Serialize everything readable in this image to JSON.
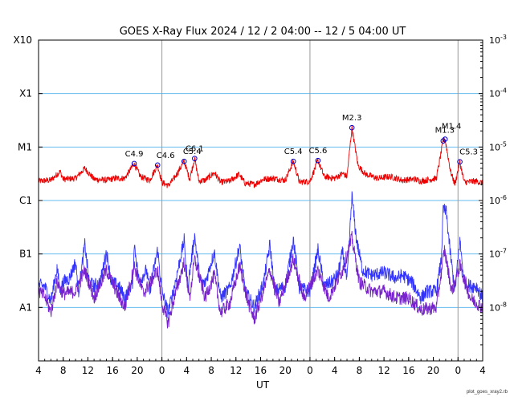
{
  "chart_data": {
    "type": "line",
    "title": "GOES X-Ray Flux   2024 / 12 /  2   04:00 -- 12 /  5   04:00   UT",
    "xlabel": "UT",
    "x_range_hours": [
      0,
      72
    ],
    "x_ticks": [
      {
        "h": 0,
        "label": "4"
      },
      {
        "h": 4,
        "label": "8"
      },
      {
        "h": 8,
        "label": "12"
      },
      {
        "h": 12,
        "label": "16"
      },
      {
        "h": 16,
        "label": "20"
      },
      {
        "h": 20,
        "label": "0"
      },
      {
        "h": 24,
        "label": "4"
      },
      {
        "h": 28,
        "label": "8"
      },
      {
        "h": 32,
        "label": "12"
      },
      {
        "h": 36,
        "label": "16"
      },
      {
        "h": 40,
        "label": "20"
      },
      {
        "h": 44,
        "label": "0"
      },
      {
        "h": 48,
        "label": "4"
      },
      {
        "h": 52,
        "label": "8"
      },
      {
        "h": 56,
        "label": "12"
      },
      {
        "h": 60,
        "label": "16"
      },
      {
        "h": 64,
        "label": "20"
      },
      {
        "h": 68,
        "label": "0"
      },
      {
        "h": 72,
        "label": "4"
      }
    ],
    "day_boundaries_hours": [
      20,
      44,
      68
    ],
    "y_scale": "log",
    "y_range": [
      1e-09,
      0.001
    ],
    "y_left_labels": [
      {
        "label": "A1",
        "value": 1e-08
      },
      {
        "label": "B1",
        "value": 1e-07
      },
      {
        "label": "C1",
        "value": 1e-06
      },
      {
        "label": "M1",
        "value": 1e-05
      },
      {
        "label": "X1",
        "value": 0.0001
      },
      {
        "label": "X10",
        "value": 0.001
      }
    ],
    "y_right_labels": [
      {
        "base": "10",
        "exp": "-3",
        "value": 0.001
      },
      {
        "base": "10",
        "exp": "-4",
        "value": 0.0001
      },
      {
        "base": "10",
        "exp": "-5",
        "value": 1e-05
      },
      {
        "base": "10",
        "exp": "-6",
        "value": 1e-06
      },
      {
        "base": "10",
        "exp": "-7",
        "value": 1e-07
      },
      {
        "base": "10",
        "exp": "-8",
        "value": 1e-08
      }
    ],
    "grid_levels": [
      1e-08,
      1e-07,
      1e-06,
      1e-05,
      0.0001
    ],
    "series": [
      {
        "color": "#ee0000",
        "values": [
          [
            0,
            2.3e-06
          ],
          [
            2,
            2.4e-06
          ],
          [
            3.5,
            3.5e-06
          ],
          [
            4,
            2.5e-06
          ],
          [
            6,
            2.6e-06
          ],
          [
            7.5,
            4e-06
          ],
          [
            9,
            2.5e-06
          ],
          [
            11,
            2.4e-06
          ],
          [
            12.5,
            2.6e-06
          ],
          [
            14,
            2.6e-06
          ],
          [
            15.5,
            4.9e-06
          ],
          [
            16.5,
            2.8e-06
          ],
          [
            18,
            2.4e-06
          ],
          [
            19.3,
            4.6e-06
          ],
          [
            20,
            2.2e-06
          ],
          [
            21,
            1.9e-06
          ],
          [
            22,
            2.6e-06
          ],
          [
            23.6,
            5.4e-06
          ],
          [
            24.5,
            2.5e-06
          ],
          [
            25.3,
            6.1e-06
          ],
          [
            26,
            2.3e-06
          ],
          [
            27,
            2.4e-06
          ],
          [
            28.5,
            3.3e-06
          ],
          [
            29.5,
            2.2e-06
          ],
          [
            31,
            2.3e-06
          ],
          [
            32.5,
            3.1e-06
          ],
          [
            33.5,
            2.1e-06
          ],
          [
            35,
            2e-06
          ],
          [
            36.5,
            2.5e-06
          ],
          [
            38,
            2.6e-06
          ],
          [
            40,
            2.4e-06
          ],
          [
            41.3,
            5.4e-06
          ],
          [
            42.3,
            2.2e-06
          ],
          [
            44,
            2.3e-06
          ],
          [
            45.3,
            5.6e-06
          ],
          [
            46.3,
            2.8e-06
          ],
          [
            48,
            2.6e-06
          ],
          [
            49.3,
            3.2e-06
          ],
          [
            50,
            2.8e-06
          ],
          [
            50.8,
            2.3e-05
          ],
          [
            51.8,
            4.5e-06
          ],
          [
            53,
            3.1e-06
          ],
          [
            55,
            2.6e-06
          ],
          [
            57,
            2.8e-06
          ],
          [
            59,
            2.4e-06
          ],
          [
            61,
            2.5e-06
          ],
          [
            62,
            2.3e-06
          ],
          [
            64.5,
            2.6e-06
          ],
          [
            65.6,
            1.3e-05
          ],
          [
            65.9,
            1.4e-05
          ],
          [
            66.8,
            3.5e-06
          ],
          [
            67.5,
            2e-06
          ],
          [
            68.3,
            5.3e-06
          ],
          [
            69,
            2.2e-06
          ],
          [
            71,
            2.3e-06
          ],
          [
            72,
            2.1e-06
          ]
        ]
      },
      {
        "color": "#3333ff",
        "values": [
          [
            0,
            2.6e-08
          ],
          [
            1,
            2.5e-08
          ],
          [
            2,
            1.3e-08
          ],
          [
            3,
            5.5e-08
          ],
          [
            3.5,
            2e-08
          ],
          [
            4,
            3e-08
          ],
          [
            5,
            3.5e-08
          ],
          [
            6,
            7e-08
          ],
          [
            6.5,
            2e-08
          ],
          [
            7.5,
            1.5e-07
          ],
          [
            8.2,
            3e-08
          ],
          [
            9,
            2.5e-08
          ],
          [
            10,
            3e-08
          ],
          [
            11,
            1.1e-07
          ],
          [
            11.8,
            3e-08
          ],
          [
            13,
            2.5e-08
          ],
          [
            14,
            1.5e-08
          ],
          [
            15.3,
            3e-08
          ],
          [
            15.5,
            1.6e-07
          ],
          [
            16.3,
            3e-08
          ],
          [
            17.5,
            5e-08
          ],
          [
            18,
            2e-08
          ],
          [
            19.3,
            1.2e-07
          ],
          [
            20,
            2e-08
          ],
          [
            21,
            8e-09
          ],
          [
            22,
            2.4e-08
          ],
          [
            23.6,
            1.8e-07
          ],
          [
            24.2,
            2.5e-08
          ],
          [
            25.3,
            2.2e-07
          ],
          [
            26.2,
            3e-08
          ],
          [
            27,
            2.8e-08
          ],
          [
            28.5,
            1.1e-07
          ],
          [
            29.5,
            1.5e-08
          ],
          [
            31,
            2.3e-08
          ],
          [
            32.6,
            1.4e-07
          ],
          [
            33.5,
            2e-08
          ],
          [
            35,
            1e-08
          ],
          [
            36.5,
            3e-08
          ],
          [
            37.5,
            1.5e-07
          ],
          [
            38.3,
            2e-08
          ],
          [
            40,
            2.5e-08
          ],
          [
            41.3,
            1.9e-07
          ],
          [
            42.3,
            2.3e-08
          ],
          [
            44,
            2e-08
          ],
          [
            45.3,
            1.2e-07
          ],
          [
            46.3,
            2.5e-08
          ],
          [
            47.5,
            3e-08
          ],
          [
            48.5,
            4e-08
          ],
          [
            49.3,
            1.1e-07
          ],
          [
            50,
            3e-08
          ],
          [
            50.8,
            1.2e-06
          ],
          [
            51.5,
            2e-07
          ],
          [
            52.5,
            5e-08
          ],
          [
            54,
            4e-08
          ],
          [
            56,
            4.5e-08
          ],
          [
            58,
            3.5e-08
          ],
          [
            59,
            4e-08
          ],
          [
            60.5,
            3e-08
          ],
          [
            62,
            1.5e-08
          ],
          [
            63,
            2e-08
          ],
          [
            64.5,
            2e-08
          ],
          [
            65.3,
            8e-08
          ],
          [
            65.6,
            7e-07
          ],
          [
            66.1,
            6e-07
          ],
          [
            66.8,
            9e-08
          ],
          [
            67.5,
            2e-08
          ],
          [
            68.3,
            1.8e-07
          ],
          [
            69,
            3e-08
          ],
          [
            70,
            2.5e-08
          ],
          [
            71,
            2.5e-08
          ],
          [
            72,
            1.5e-08
          ]
        ]
      },
      {
        "color": "#7722cc",
        "values": [
          [
            0,
            2e-08
          ],
          [
            1,
            1.6e-08
          ],
          [
            2,
            8e-09
          ],
          [
            3,
            3e-08
          ],
          [
            4,
            1.8e-08
          ],
          [
            6,
            2e-08
          ],
          [
            7.5,
            5e-08
          ],
          [
            9,
            1.5e-08
          ],
          [
            11,
            5e-08
          ],
          [
            13,
            1.6e-08
          ],
          [
            14,
            1e-08
          ],
          [
            15.5,
            6e-08
          ],
          [
            17,
            1.8e-08
          ],
          [
            19.3,
            5e-08
          ],
          [
            20,
            1.2e-08
          ],
          [
            21,
            5e-09
          ],
          [
            22,
            1.5e-08
          ],
          [
            23.6,
            7e-08
          ],
          [
            24.5,
            1.5e-08
          ],
          [
            25.3,
            8e-08
          ],
          [
            27,
            1.5e-08
          ],
          [
            28.5,
            4e-08
          ],
          [
            29.5,
            8e-09
          ],
          [
            31,
            1.2e-08
          ],
          [
            32.6,
            6e-08
          ],
          [
            34,
            1.2e-08
          ],
          [
            35,
            6e-09
          ],
          [
            37.5,
            5e-08
          ],
          [
            39,
            1.2e-08
          ],
          [
            41.3,
            8e-08
          ],
          [
            43,
            1.5e-08
          ],
          [
            45.3,
            5e-08
          ],
          [
            47,
            1.5e-08
          ],
          [
            49.3,
            5e-08
          ],
          [
            50.8,
            2e-07
          ],
          [
            52,
            3e-08
          ],
          [
            54,
            2e-08
          ],
          [
            56,
            2e-08
          ],
          [
            58,
            1.5e-08
          ],
          [
            60,
            1.5e-08
          ],
          [
            62,
            9e-09
          ],
          [
            64.5,
            1e-08
          ],
          [
            65.8,
            1.2e-07
          ],
          [
            67,
            2e-08
          ],
          [
            68.3,
            6e-08
          ],
          [
            70,
            1.5e-08
          ],
          [
            72,
            1e-08
          ]
        ]
      }
    ],
    "flares": [
      {
        "label": "C4.9",
        "h": 15.5,
        "value": 4.9e-06
      },
      {
        "label": "C4.6",
        "h": 19.3,
        "value": 4.6e-06
      },
      {
        "label": "C5.4",
        "h": 23.6,
        "value": 5.4e-06
      },
      {
        "label": "C6.1",
        "h": 25.3,
        "value": 6.1e-06
      },
      {
        "label": "C5.4",
        "h": 41.3,
        "value": 5.4e-06
      },
      {
        "label": "C5.6",
        "h": 45.3,
        "value": 5.6e-06
      },
      {
        "label": "M2.3",
        "h": 50.8,
        "value": 2.3e-05
      },
      {
        "label": "M1.3",
        "h": 65.6,
        "value": 1.3e-05
      },
      {
        "label": "M1.4",
        "h": 65.9,
        "value": 1.4e-05
      },
      {
        "label": "C5.3",
        "h": 68.3,
        "value": 5.3e-06
      }
    ],
    "credit": "plot_goes_xray2.rb"
  }
}
